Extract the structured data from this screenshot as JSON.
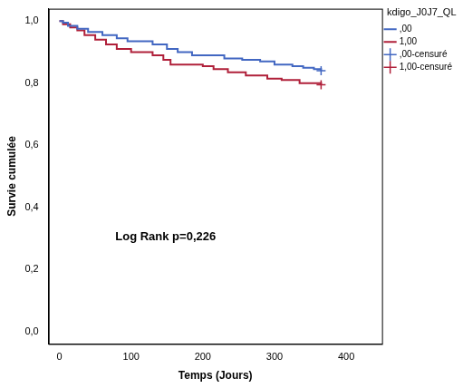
{
  "chart_data": {
    "type": "step",
    "x_label": "Temps (Jours)",
    "y_label": "Survie cumulée",
    "annotations": [
      "Log Rank p=0,226"
    ],
    "legend_title": "kdigo_J0J7_QL",
    "legend": "top-right",
    "grid": false,
    "xlim": [
      -15,
      450
    ],
    "xticks": [
      0,
      100,
      200,
      300,
      400
    ],
    "ylim": [
      -0.04,
      1.04
    ],
    "yticks": [
      {
        "value": 0,
        "label": "0,0"
      },
      {
        "value": 0.2,
        "label": "0,2"
      },
      {
        "value": 0.4,
        "label": "0,4"
      },
      {
        "value": 0.6,
        "label": "0,6"
      },
      {
        "value": 0.8,
        "label": "0,8"
      },
      {
        "value": 1,
        "label": "1,0"
      }
    ],
    "series": [
      {
        "name": ",00",
        "color": "#4267c2",
        "type": "step",
        "line_style": "solid",
        "x": [
          0,
          5,
          12,
          25,
          40,
          60,
          80,
          95,
          130,
          150,
          165,
          185,
          230,
          255,
          280,
          300,
          325,
          340,
          355,
          365
        ],
        "values": [
          1.0,
          0.995,
          0.985,
          0.975,
          0.965,
          0.955,
          0.945,
          0.935,
          0.925,
          0.91,
          0.9,
          0.89,
          0.88,
          0.875,
          0.87,
          0.86,
          0.855,
          0.85,
          0.845,
          0.84
        ]
      },
      {
        "name": "1,00",
        "color": "#b0203a",
        "type": "step",
        "line_style": "solid",
        "x": [
          0,
          5,
          15,
          25,
          35,
          50,
          65,
          80,
          100,
          130,
          145,
          155,
          200,
          215,
          235,
          260,
          290,
          310,
          335,
          365
        ],
        "values": [
          1.0,
          0.99,
          0.98,
          0.97,
          0.955,
          0.94,
          0.925,
          0.91,
          0.9,
          0.89,
          0.875,
          0.86,
          0.855,
          0.845,
          0.835,
          0.825,
          0.815,
          0.81,
          0.8,
          0.795
        ]
      },
      {
        "name": ",00-censuré",
        "color": "#4267c2",
        "type": "scatter",
        "marker": "cross",
        "x": [
          365
        ],
        "values": [
          0.84
        ]
      },
      {
        "name": "1,00-censuré",
        "color": "#b0203a",
        "type": "scatter",
        "marker": "cross",
        "x": [
          365
        ],
        "values": [
          0.795
        ]
      }
    ]
  }
}
